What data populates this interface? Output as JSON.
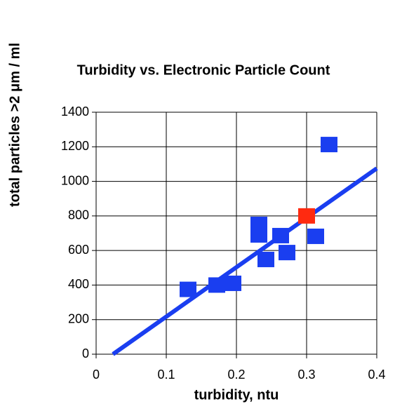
{
  "chart_data": {
    "type": "scatter",
    "title": "Turbidity vs. Electronic Particle Count",
    "xlabel": "turbidity, ntu",
    "ylabel": "total particles >2 μm / ml",
    "xlim": [
      0,
      0.4
    ],
    "xticks": [
      0,
      0.1,
      0.2,
      0.3,
      0.4
    ],
    "ylim": [
      0,
      1400
    ],
    "yticks": [
      0,
      200,
      400,
      600,
      800,
      1000,
      1200,
      1400
    ],
    "grid": true,
    "series": [
      {
        "color": "#1a3ef0",
        "x": [
          0.131,
          0.172,
          0.195,
          0.232,
          0.232,
          0.242,
          0.263,
          0.272,
          0.313,
          0.332
        ],
        "values": [
          375,
          400,
          410,
          751,
          690,
          548,
          686,
          588,
          682,
          1213
        ]
      },
      {
        "color": "#ff2a10",
        "x": [
          0.3
        ],
        "values": [
          800
        ],
        "highlight_ticks": true
      }
    ],
    "trend": {
      "color": "#1a3ef0",
      "x": [
        0.024,
        0.4
      ],
      "values": [
        0,
        1075
      ]
    }
  }
}
